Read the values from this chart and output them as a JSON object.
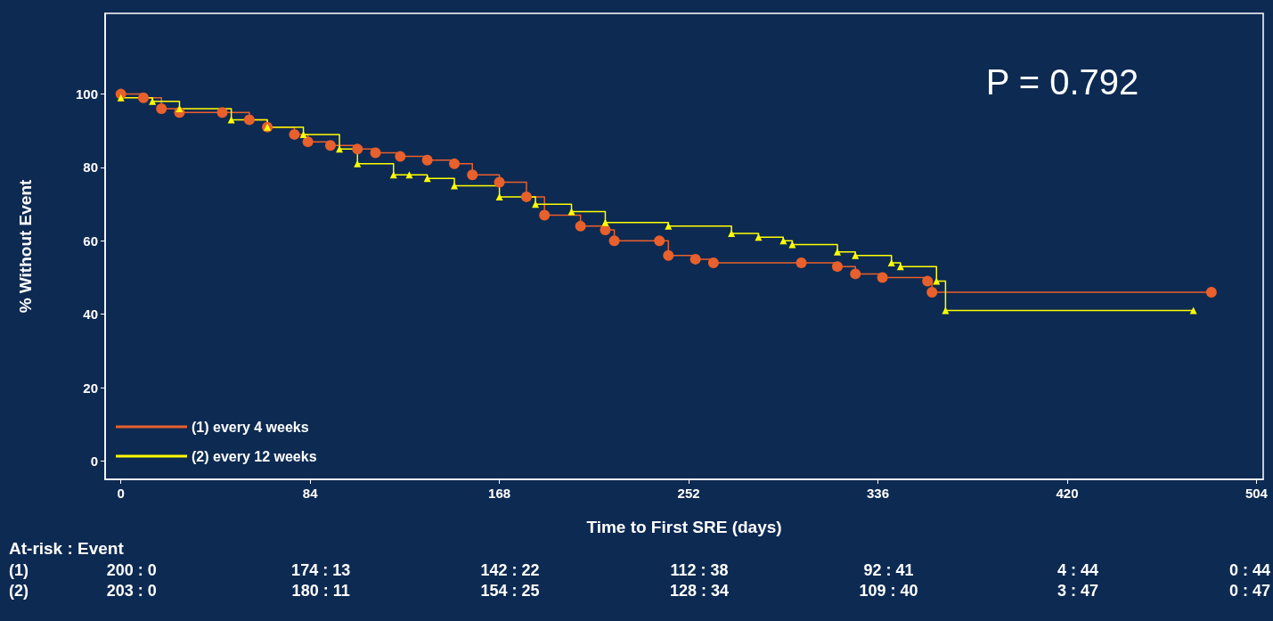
{
  "chart_data": {
    "type": "step",
    "xlabel": "Time to First SRE (days)",
    "ylabel": "% Without Event",
    "xlim": [
      -7,
      507
    ],
    "xticks": [
      0,
      84,
      168,
      252,
      336,
      420,
      504
    ],
    "ylim": [
      -5,
      122
    ],
    "yticks": [
      0,
      20,
      40,
      60,
      80,
      100
    ],
    "grid": false,
    "legend": "bottom left",
    "line_style": "solid",
    "series": [
      {
        "name": "(1) every 4 weeks",
        "color": "#e8602c",
        "marker": "circle",
        "x": [
          0,
          10,
          18,
          26,
          45,
          57,
          65,
          77,
          83,
          93,
          105,
          113,
          124,
          136,
          148,
          156,
          168,
          180,
          188,
          204,
          215,
          219,
          239,
          243,
          255,
          263,
          302,
          318,
          326,
          338,
          358,
          360,
          484
        ],
        "values": [
          100,
          99,
          96,
          95,
          95,
          93,
          91,
          89,
          87,
          86,
          85,
          84,
          83,
          82,
          81,
          78,
          76,
          72,
          67,
          64,
          63,
          60,
          60,
          56,
          55,
          54,
          54,
          53,
          51,
          50,
          49,
          46,
          46
        ]
      },
      {
        "name": "(2) every 12 weeks",
        "color": "#ffff00",
        "marker": "triangle",
        "x": [
          0,
          14,
          26,
          49,
          65,
          81,
          97,
          105,
          121,
          128,
          136,
          148,
          168,
          184,
          200,
          215,
          243,
          271,
          283,
          294,
          298,
          318,
          326,
          342,
          346,
          362,
          366,
          476
        ],
        "values": [
          99,
          98,
          96,
          93,
          91,
          89,
          85,
          81,
          78,
          78,
          77,
          75,
          72,
          70,
          68,
          65,
          64,
          62,
          61,
          60,
          59,
          57,
          56,
          54,
          53,
          49,
          41,
          41
        ]
      }
    ],
    "annotations": [
      "P = 0.792",
      "At-risk : Event",
      "(1)",
      "200 : 0",
      "174 : 13",
      "142 : 22",
      "112 : 38",
      "92 : 41",
      "4 : 44",
      "0 : 44",
      "(2)",
      "203 : 0",
      "180 : 11",
      "154 : 25",
      "128 : 34",
      "109 : 40",
      "3 : 47",
      "0 : 47"
    ]
  }
}
